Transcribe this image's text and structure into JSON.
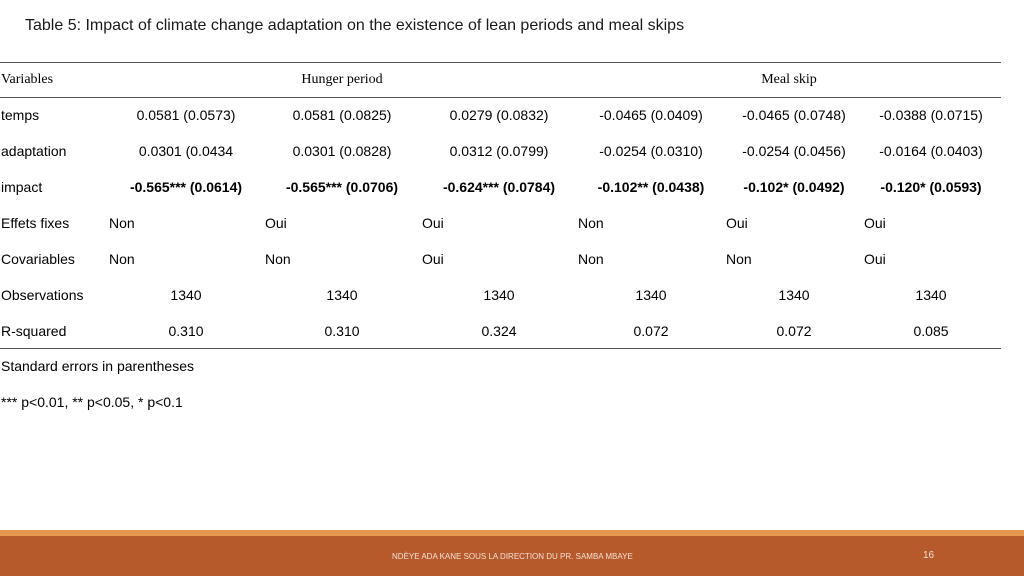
{
  "title": "Table 5: Impact of climate change adaptation on the existence of lean periods and meal skips",
  "header": {
    "variables": "Variables",
    "group1": "Hunger period",
    "group2": "Meal skip"
  },
  "rows": [
    {
      "label": "temps",
      "values": [
        "0.0581 (0.0573)",
        "0.0581 (0.0825)",
        "0.0279 (0.0832)",
        "-0.0465 (0.0409)",
        "-0.0465 (0.0748)",
        "-0.0388 (0.0715)"
      ]
    },
    {
      "label": "adaptation",
      "values": [
        "0.0301 (0.0434",
        "0.0301 (0.0828)",
        "0.0312 (0.0799)",
        "-0.0254 (0.0310)",
        "-0.0254 (0.0456)",
        "-0.0164 (0.0403)"
      ]
    },
    {
      "label": "impact",
      "values": [
        "-0.565*** (0.0614)",
        "-0.565*** (0.0706)",
        "-0.624*** (0.0784)",
        "-0.102** (0.0438)",
        "-0.102* (0.0492)",
        "-0.120* (0.0593)"
      ]
    },
    {
      "label": "Effets fixes",
      "values": [
        "Non",
        "Oui",
        "Oui",
        "Non",
        "Oui",
        "Oui"
      ]
    },
    {
      "label": "Covariables",
      "values": [
        "Non",
        "Non",
        "Oui",
        "Non",
        "Non",
        "Oui"
      ]
    },
    {
      "label": "Observations",
      "values": [
        "1340",
        "1340",
        "1340",
        "1340",
        "1340",
        "1340"
      ]
    },
    {
      "label": "R-squared",
      "values": [
        "0.310",
        "0.310",
        "0.324",
        "0.072",
        "0.072",
        "0.085"
      ]
    }
  ],
  "notes": {
    "line1": "Standard errors in parentheses",
    "line2": "*** p<0.01, ** p<0.05, * p<0.1"
  },
  "footer": {
    "text": "NDÈYE ADA KANE SOUS LA DIRECTION DU PR. SAMBA MBAYE",
    "page": "16"
  },
  "colors": {
    "footer_band": "#b65a2c",
    "footer_accent": "#e59752"
  }
}
